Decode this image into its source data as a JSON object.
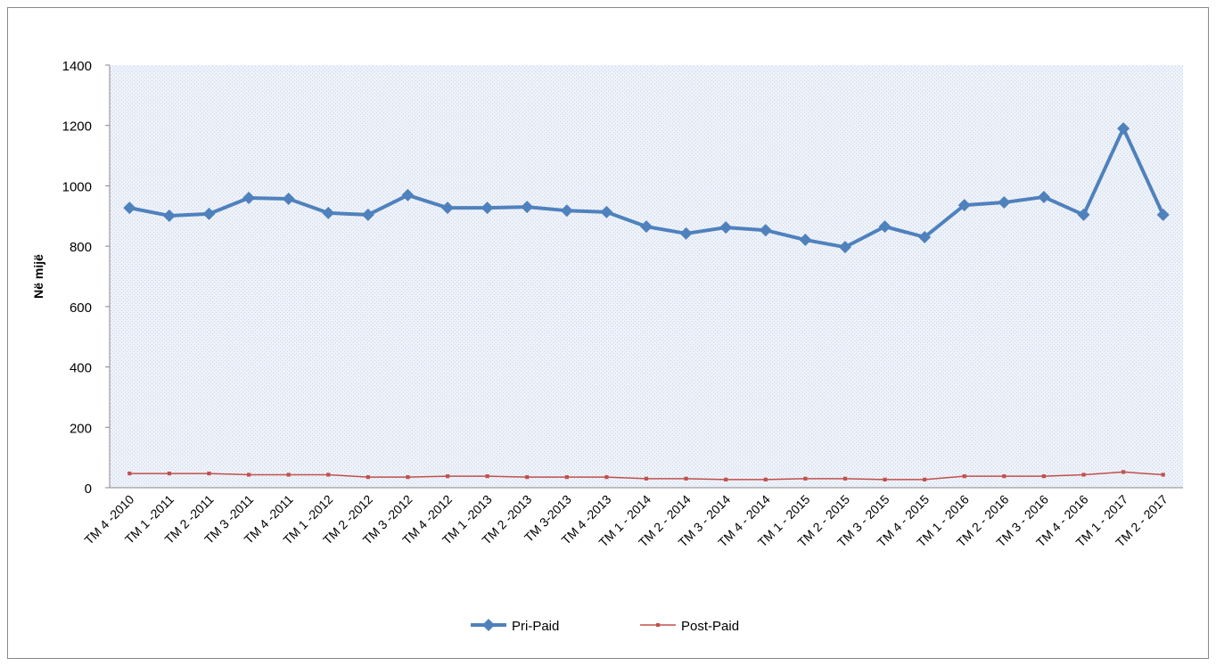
{
  "chart_data": {
    "type": "line",
    "ylabel": "Në mijë",
    "categories": [
      "TM 4 -2010",
      "TM 1 -2011",
      "TM 2 -2011",
      "TM 3 -2011",
      "TM 4 -2011",
      "TM 1 -2012",
      "TM 2 -2012",
      "TM 3 -2012",
      "TM 4 -2012",
      "TM 1 -2013",
      "TM 2 -2013",
      "TM 3-2013",
      "TM 4 -2013",
      "TM 1 - 2014",
      "TM 2 - 2014",
      "TM 3 - 2014",
      "TM 4 - 2014",
      "TM 1 - 2015",
      "TM 2 - 2015",
      "TM 3 - 2015",
      "TM 4 - 2015",
      "TM 1 - 2016",
      "TM 2 - 2016",
      "TM 3 - 2016",
      "TM 4 - 2016",
      "TM 1 - 2017",
      "TM 2 - 2017"
    ],
    "series": [
      {
        "name": "Pri-Paid",
        "color": "#4f81bd",
        "marker": "diamond",
        "values": [
          927,
          901,
          907,
          960,
          957,
          910,
          904,
          969,
          927,
          927,
          930,
          918,
          913,
          865,
          842,
          862,
          853,
          821,
          797,
          865,
          830,
          936,
          945,
          963,
          904,
          1190,
          904
        ]
      },
      {
        "name": "Post-Paid",
        "color": "#c0504d",
        "marker": "square",
        "values": [
          47,
          47,
          47,
          43,
          43,
          43,
          35,
          35,
          38,
          38,
          35,
          35,
          35,
          30,
          30,
          27,
          27,
          30,
          30,
          27,
          27,
          38,
          38,
          38,
          43,
          52,
          43
        ]
      }
    ],
    "ylim": [
      0,
      1400
    ],
    "yticks": [
      0,
      200,
      400,
      600,
      800,
      1000,
      1200,
      1400
    ],
    "legend": "bottom"
  }
}
